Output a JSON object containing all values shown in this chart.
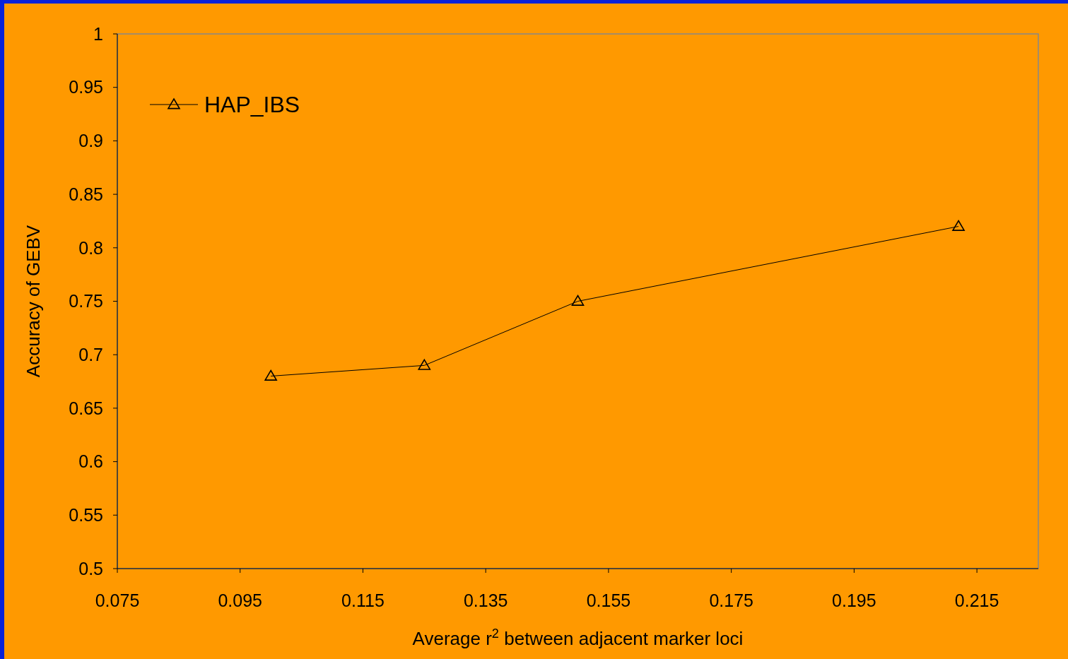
{
  "chart_data": {
    "type": "line",
    "xlabel": "Average r$^{2}$ between adjacent marker loci",
    "ylabel": "Accuracy of GEBV",
    "x": [
      0.1,
      0.125,
      0.15,
      0.212
    ],
    "series": [
      {
        "name": "HAP_IBS",
        "color": "#000000",
        "values": [
          0.68,
          0.69,
          0.75,
          0.82
        ]
      }
    ],
    "xlim": [
      0.075,
      0.225
    ],
    "xticks": [
      0.075,
      0.095,
      0.115,
      0.135,
      0.155,
      0.175,
      0.195,
      0.215
    ],
    "ylim": [
      0.5,
      1
    ],
    "yticks": [
      0.5,
      0.55,
      0.6,
      0.65,
      0.7,
      0.75,
      0.8,
      0.85,
      0.9,
      0.95,
      1
    ],
    "grid": false,
    "legend": "top left",
    "marker": "triangle",
    "line_style": "solid"
  }
}
